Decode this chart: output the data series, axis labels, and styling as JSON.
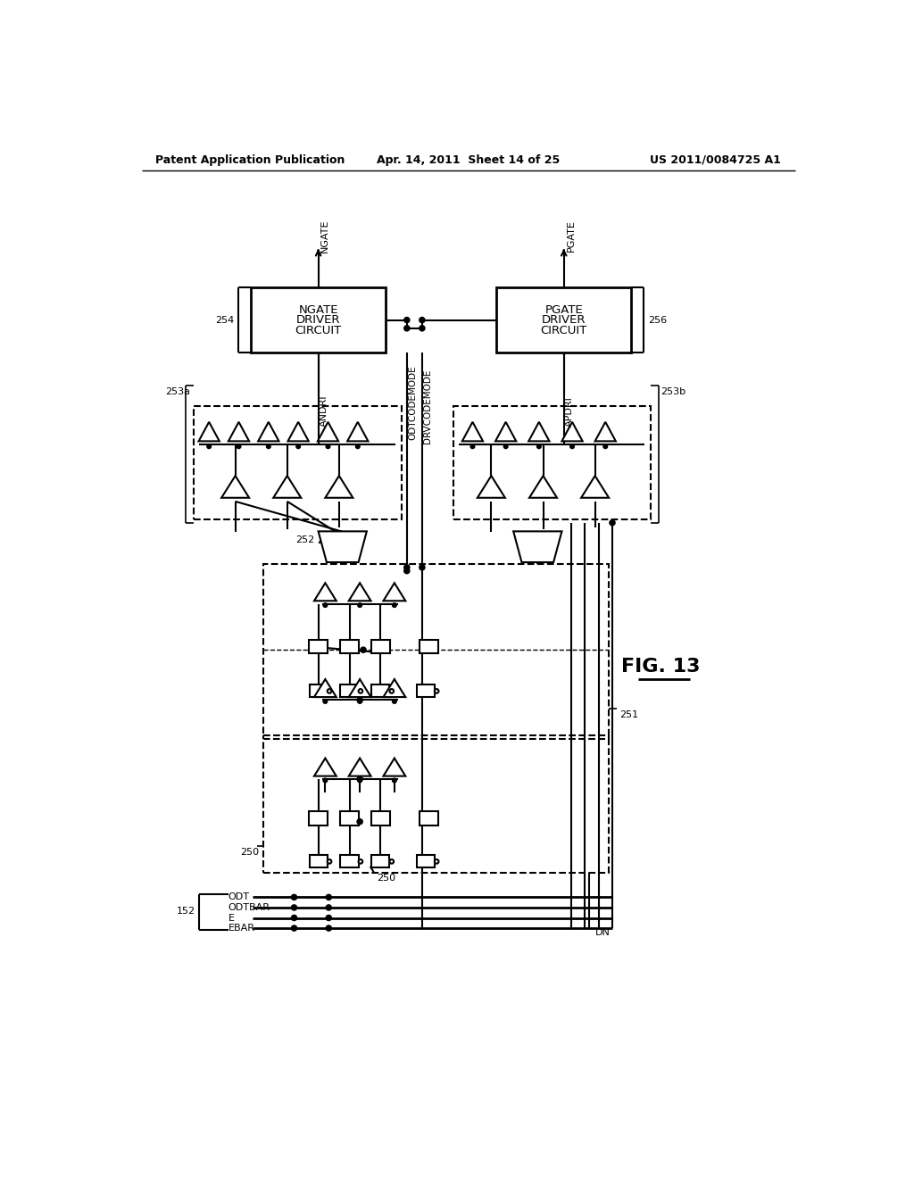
{
  "bg_color": "#ffffff",
  "header_left": "Patent Application Publication",
  "header_center": "Apr. 14, 2011  Sheet 14 of 25",
  "header_right": "US 2011/0084725 A1",
  "fig_label": "FIG. 13",
  "lc": "#000000"
}
